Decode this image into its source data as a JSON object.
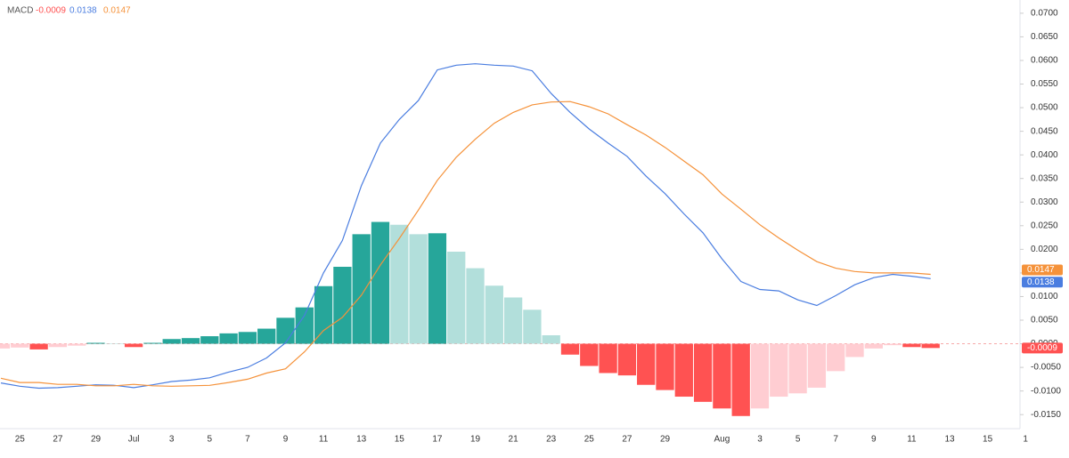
{
  "chart_data": {
    "type": "bar",
    "title": "MACD",
    "categories": [
      null,
      "25",
      null,
      "27",
      null,
      "29",
      null,
      "Jul",
      null,
      "3",
      null,
      "5",
      null,
      "7",
      null,
      "9",
      null,
      "11",
      null,
      "13",
      null,
      "15",
      null,
      "17",
      null,
      "19",
      null,
      "21",
      null,
      "23",
      null,
      "25",
      null,
      "27",
      null,
      "29",
      null,
      null,
      "Aug",
      null,
      "3",
      null,
      "5",
      null,
      "7",
      null,
      "9",
      null,
      "11",
      null,
      "13",
      null,
      "15",
      null,
      "1"
    ],
    "series": [
      {
        "type": "bar",
        "values": [
          -0.001,
          -0.0008,
          -0.0012,
          -0.0007,
          -0.0004,
          0.0002,
          0.0001,
          -0.0007,
          0.0002,
          0.001,
          0.0012,
          0.0016,
          0.0022,
          0.0025,
          0.0032,
          0.0055,
          0.0077,
          0.0122,
          0.0163,
          0.0232,
          0.0258,
          0.0252,
          0.0232,
          0.0234,
          0.0195,
          0.016,
          0.0123,
          0.0098,
          0.0072,
          0.0018,
          -0.0023,
          -0.0047,
          -0.0062,
          -0.0067,
          -0.0087,
          -0.0098,
          -0.0112,
          -0.0123,
          -0.0137,
          -0.0153,
          -0.0137,
          -0.0112,
          -0.0105,
          -0.0093,
          -0.0058,
          -0.0028,
          -0.001,
          -0.0003,
          -0.0007,
          -0.0009,
          null,
          null,
          null,
          null,
          null
        ],
        "colors": [
          "#ffcdd2",
          "#ffcdd2",
          "#ff5252",
          "#ffcdd2",
          "#ffcdd2",
          "#26a69a",
          "#b2dfdb",
          "#ff5252",
          "#26a69a",
          "#26a69a",
          "#26a69a",
          "#26a69a",
          "#26a69a",
          "#26a69a",
          "#26a69a",
          "#26a69a",
          "#26a69a",
          "#26a69a",
          "#26a69a",
          "#26a69a",
          "#26a69a",
          "#b2dfdb",
          "#b2dfdb",
          "#26a69a",
          "#b2dfdb",
          "#b2dfdb",
          "#b2dfdb",
          "#b2dfdb",
          "#b2dfdb",
          "#b2dfdb",
          "#ff5252",
          "#ff5252",
          "#ff5252",
          "#ff5252",
          "#ff5252",
          "#ff5252",
          "#ff5252",
          "#ff5252",
          "#ff5252",
          "#ff5252",
          "#ffcdd2",
          "#ffcdd2",
          "#ffcdd2",
          "#ffcdd2",
          "#ffcdd2",
          "#ffcdd2",
          "#ffcdd2",
          "#ffcdd2",
          "#ff5252",
          "#ff5252",
          null,
          null,
          null,
          null,
          null
        ],
        "color": "#ff5252"
      },
      {
        "type": "line",
        "color": "#4a7de0",
        "values": [
          -0.0083,
          -0.009,
          -0.0094,
          -0.0093,
          -0.009,
          -0.0087,
          -0.0088,
          -0.0093,
          -0.0087,
          -0.008,
          -0.0077,
          -0.0072,
          -0.006,
          -0.005,
          -0.003,
          0.0002,
          0.006,
          0.015,
          0.0219,
          0.0335,
          0.0425,
          0.0475,
          0.0515,
          0.058,
          0.059,
          0.0593,
          0.059,
          0.0588,
          0.0578,
          0.053,
          0.049,
          0.0455,
          0.0425,
          0.0397,
          0.0355,
          0.0318,
          0.0275,
          0.0235,
          0.018,
          0.0132,
          0.0115,
          0.0112,
          0.0093,
          0.0081,
          0.0102,
          0.0125,
          0.014,
          0.0147,
          0.0143,
          0.0138,
          null,
          null,
          null,
          null,
          null
        ]
      },
      {
        "type": "line",
        "color": "#f5923a",
        "values": [
          -0.0073,
          -0.0082,
          -0.0082,
          -0.0086,
          -0.0086,
          -0.0089,
          -0.0089,
          -0.0086,
          -0.0089,
          -0.009,
          -0.0089,
          -0.0088,
          -0.0082,
          -0.0075,
          -0.0062,
          -0.0053,
          -0.0017,
          0.0028,
          0.0056,
          0.0103,
          0.0167,
          0.0223,
          0.0283,
          0.0346,
          0.0395,
          0.0433,
          0.0467,
          0.049,
          0.0506,
          0.0512,
          0.0513,
          0.0502,
          0.0487,
          0.0464,
          0.0442,
          0.0416,
          0.0387,
          0.0358,
          0.0317,
          0.0285,
          0.0252,
          0.0224,
          0.0198,
          0.0174,
          0.016,
          0.0153,
          0.015,
          0.015,
          0.015,
          0.0147,
          null,
          null,
          null,
          null,
          null
        ]
      }
    ],
    "ylim": [
      -0.0176,
      0.0728
    ],
    "yticks": [
      {
        "value": 0.07,
        "label": "0.0700"
      },
      {
        "value": 0.065,
        "label": "0.0650"
      },
      {
        "value": 0.06,
        "label": "0.0600"
      },
      {
        "value": 0.055,
        "label": "0.0550"
      },
      {
        "value": 0.05,
        "label": "0.0500"
      },
      {
        "value": 0.045,
        "label": "0.0450"
      },
      {
        "value": 0.04,
        "label": "0.0400"
      },
      {
        "value": 0.035,
        "label": "0.0350"
      },
      {
        "value": 0.03,
        "label": "0.0300"
      },
      {
        "value": 0.025,
        "label": "0.0250"
      },
      {
        "value": 0.02,
        "label": "0.0200"
      },
      {
        "value": 0.015,
        "label": "0.0150"
      },
      {
        "value": 0.01,
        "label": "0.0100"
      },
      {
        "value": 0.005,
        "label": "0.0050"
      },
      {
        "value": 0,
        "label": "0.0000"
      },
      {
        "value": -0.005,
        "label": "-0.0050"
      },
      {
        "value": -0.01,
        "label": "-0.0100"
      },
      {
        "value": -0.015,
        "label": "-0.0150"
      }
    ],
    "grid": false
  }
}
